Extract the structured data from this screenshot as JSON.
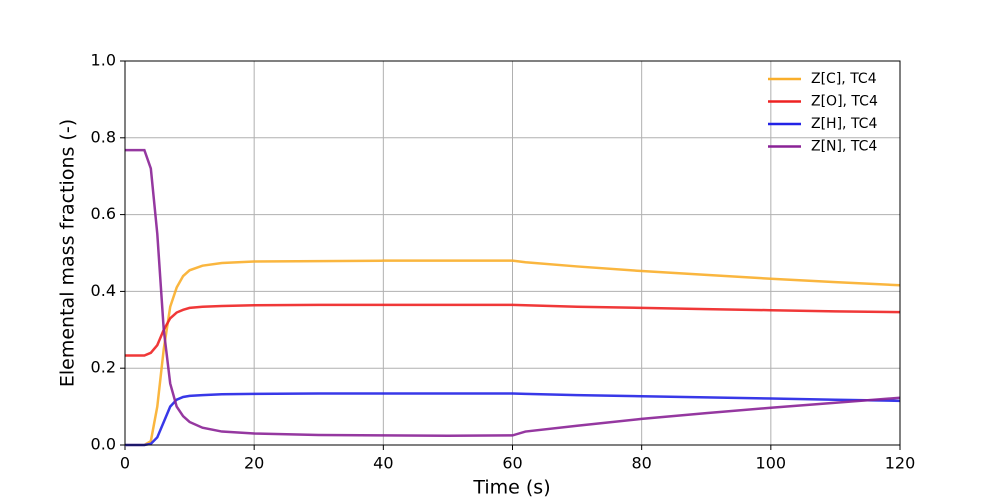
{
  "chart_data": {
    "type": "line",
    "x_label": "Time (s)",
    "y_label": "Elemental mass fractions (-)",
    "x": [
      0,
      2,
      3,
      4,
      5,
      6,
      7,
      8,
      9,
      10,
      12,
      15,
      20,
      30,
      40,
      50,
      60,
      62,
      70,
      80,
      90,
      100,
      110,
      120
    ],
    "series": [
      {
        "name": "Z[C], TC4",
        "color": "#f9ae2a",
        "values": [
          0,
          0,
          0,
          0.01,
          0.1,
          0.25,
          0.36,
          0.41,
          0.44,
          0.455,
          0.467,
          0.474,
          0.478,
          0.479,
          0.48,
          0.48,
          0.48,
          0.476,
          0.465,
          0.453,
          0.443,
          0.433,
          0.424,
          0.416
        ]
      },
      {
        "name": "Z[O], TC4",
        "color": "#ee2222",
        "values": [
          0.233,
          0.233,
          0.233,
          0.24,
          0.26,
          0.3,
          0.33,
          0.345,
          0.352,
          0.357,
          0.36,
          0.362,
          0.364,
          0.365,
          0.365,
          0.365,
          0.365,
          0.364,
          0.36,
          0.357,
          0.354,
          0.351,
          0.348,
          0.346
        ]
      },
      {
        "name": "Z[H], TC4",
        "color": "#2222e6",
        "values": [
          0,
          0,
          0,
          0.003,
          0.02,
          0.06,
          0.1,
          0.118,
          0.125,
          0.128,
          0.13,
          0.132,
          0.133,
          0.134,
          0.134,
          0.134,
          0.134,
          0.133,
          0.13,
          0.127,
          0.124,
          0.121,
          0.118,
          0.115
        ]
      },
      {
        "name": "Z[N], TC4",
        "color": "#8a2296",
        "values": [
          0.768,
          0.768,
          0.768,
          0.72,
          0.55,
          0.3,
          0.16,
          0.1,
          0.075,
          0.06,
          0.045,
          0.035,
          0.03,
          0.026,
          0.025,
          0.024,
          0.025,
          0.035,
          0.05,
          0.068,
          0.083,
          0.097,
          0.11,
          0.123
        ]
      }
    ],
    "xlim": [
      0,
      120
    ],
    "xticks": [
      0,
      20,
      40,
      60,
      80,
      100,
      120
    ],
    "ylim": [
      0,
      1
    ],
    "yticks": [
      {
        "value": 0,
        "label": "0.0"
      },
      0.2,
      0.4,
      0.6,
      0.8,
      {
        "value": 1,
        "label": "1.0"
      }
    ],
    "grid": true,
    "legend": "upper right"
  }
}
